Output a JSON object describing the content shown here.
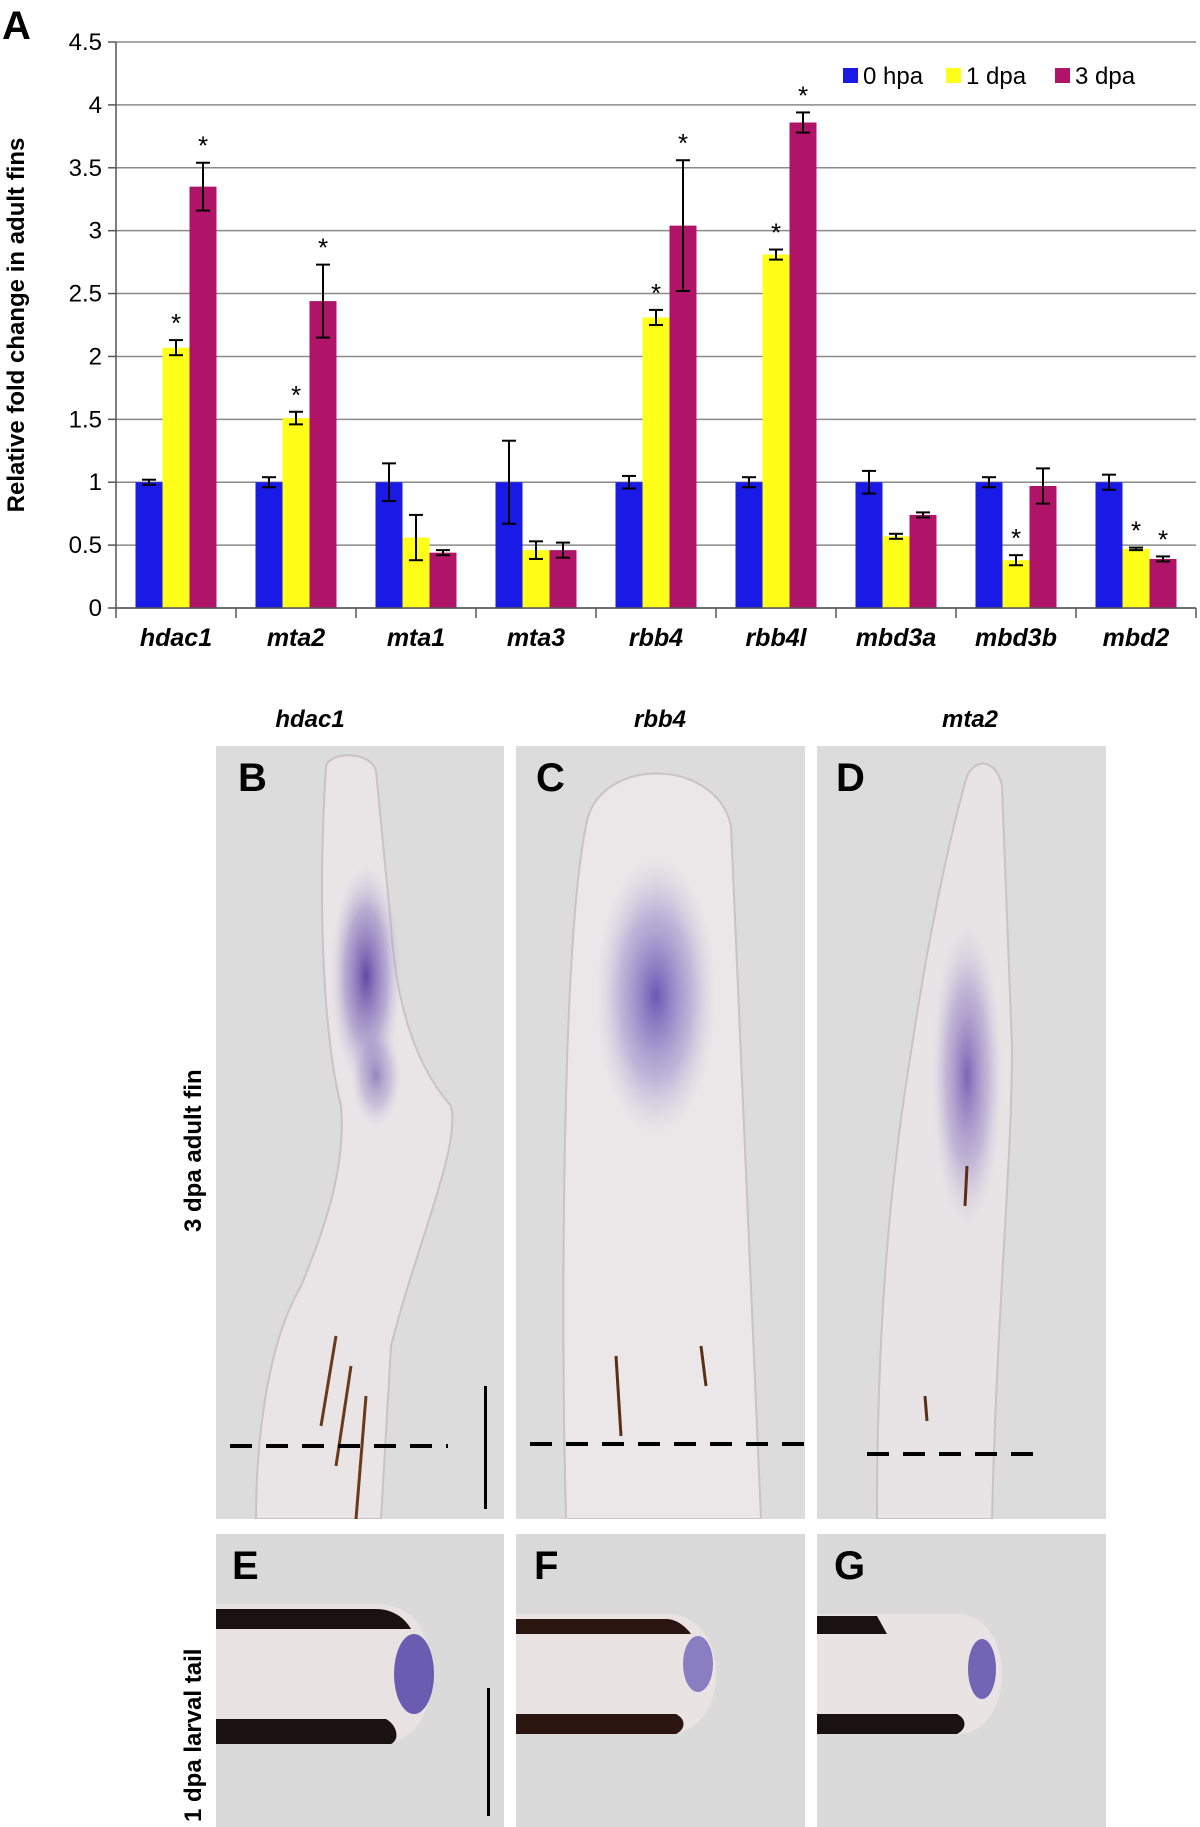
{
  "panel_a_label": "A",
  "chart_data": {
    "type": "bar",
    "ylabel": "Relative fold change in adult fins",
    "xlabel": "",
    "ylim": [
      0,
      4.5
    ],
    "yticks": [
      "0",
      "0.5",
      "1",
      "1.5",
      "2",
      "2.5",
      "3",
      "3.5",
      "4",
      "4.5"
    ],
    "grid": true,
    "legend_position": "top-right",
    "categories": [
      "hdac1",
      "mta2",
      "mta1",
      "mta3",
      "rbb4",
      "rbb4l",
      "mbd3a",
      "mbd3b",
      "mbd2"
    ],
    "series": [
      {
        "name": "0 hpa",
        "color": "#1a1ae6",
        "values": [
          1.0,
          1.0,
          1.0,
          1.0,
          1.0,
          1.0,
          1.0,
          1.0,
          1.0
        ],
        "errors": [
          0.02,
          0.04,
          0.15,
          0.33,
          0.05,
          0.04,
          0.09,
          0.04,
          0.06
        ],
        "significant": [
          false,
          false,
          false,
          false,
          false,
          false,
          false,
          false,
          false
        ]
      },
      {
        "name": "1 dpa",
        "color": "#ffff1a",
        "values": [
          2.07,
          1.51,
          0.56,
          0.46,
          2.31,
          2.81,
          0.57,
          0.38,
          0.47
        ],
        "errors": [
          0.06,
          0.05,
          0.18,
          0.07,
          0.06,
          0.04,
          0.02,
          0.04,
          0.01
        ],
        "significant": [
          true,
          true,
          false,
          false,
          true,
          true,
          false,
          true,
          true
        ]
      },
      {
        "name": "3 dpa",
        "color": "#b01468",
        "values": [
          3.35,
          2.44,
          0.44,
          0.46,
          3.04,
          3.86,
          0.74,
          0.97,
          0.39
        ],
        "errors": [
          0.19,
          0.29,
          0.02,
          0.06,
          0.52,
          0.08,
          0.02,
          0.14,
          0.02
        ],
        "significant": [
          true,
          true,
          false,
          false,
          true,
          true,
          false,
          false,
          true
        ]
      }
    ],
    "significance_marker": "*"
  },
  "image_panels": {
    "column_titles": [
      "hdac1",
      "rbb4",
      "mta2"
    ],
    "row_labels": [
      "3 dpa adult fin",
      "1 dpa larval tail"
    ],
    "top_row_letters": [
      "B",
      "C",
      "D"
    ],
    "bottom_row_letters": [
      "E",
      "F",
      "G"
    ]
  }
}
